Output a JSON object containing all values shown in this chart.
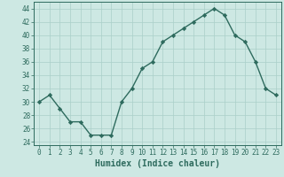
{
  "x": [
    0,
    1,
    2,
    3,
    4,
    5,
    6,
    7,
    8,
    9,
    10,
    11,
    12,
    13,
    14,
    15,
    16,
    17,
    18,
    19,
    20,
    21,
    22,
    23
  ],
  "y": [
    30,
    31,
    29,
    27,
    27,
    25,
    25,
    25,
    30,
    32,
    35,
    36,
    39,
    40,
    41,
    42,
    43,
    44,
    43,
    40,
    39,
    36,
    32,
    31
  ],
  "line_color": "#2e6b5e",
  "marker": "D",
  "marker_size": 2.2,
  "bg_color": "#cde8e3",
  "grid_color": "#aacfc9",
  "xlabel": "Humidex (Indice chaleur)",
  "xlim": [
    -0.5,
    23.5
  ],
  "ylim": [
    23.5,
    45
  ],
  "yticks": [
    24,
    26,
    28,
    30,
    32,
    34,
    36,
    38,
    40,
    42,
    44
  ],
  "xticks": [
    0,
    1,
    2,
    3,
    4,
    5,
    6,
    7,
    8,
    9,
    10,
    11,
    12,
    13,
    14,
    15,
    16,
    17,
    18,
    19,
    20,
    21,
    22,
    23
  ],
  "tick_fontsize": 5.5,
  "xlabel_fontsize": 7.0,
  "linewidth": 1.0
}
